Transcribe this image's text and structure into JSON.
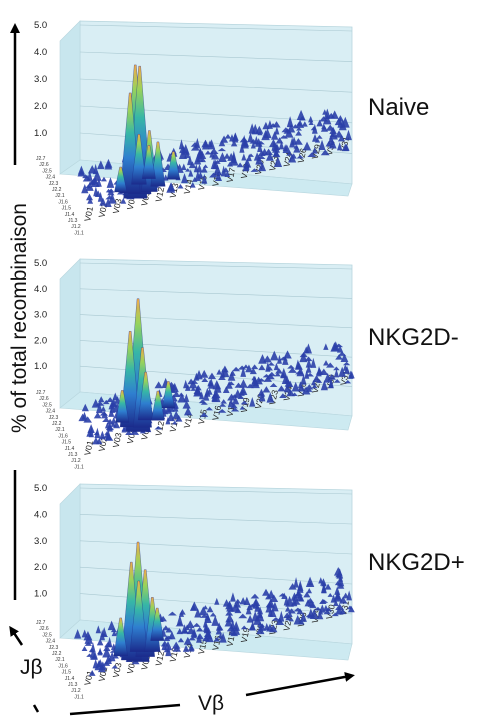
{
  "figure": {
    "y_axis_title": "% of total recombinaison",
    "x_axis_title": "Vβ",
    "depth_axis_title": "Jβ"
  },
  "chart_data": [
    {
      "type": "3d-surface",
      "title": "Naive",
      "zlim": [
        0,
        5
      ],
      "z_ticks": [
        "1.0",
        "2.0",
        "3.0",
        "4.0",
        "5.0"
      ],
      "v_ticks": [
        "V01",
        "V02",
        "V03",
        "V04",
        "V05",
        "V12",
        "V13",
        "V14",
        "V15",
        "V16",
        "V17",
        "V19",
        "V20",
        "V23",
        "V24",
        "V26",
        "V29",
        "V30",
        "V31"
      ],
      "j_ticks": [
        "J2.7",
        "J2.6",
        "J2.5",
        "J2.4",
        "J2.3",
        "J2.2",
        "J2.1",
        "J1.6",
        "J1.5",
        "J1.4",
        "J1.3",
        "J1.2",
        "J1.1"
      ],
      "peaks": [
        {
          "v": 3.2,
          "j": 1,
          "z": 4.8
        },
        {
          "v": 3.6,
          "j": 2,
          "z": 4.6
        },
        {
          "v": 3.0,
          "j": 3,
          "z": 3.6
        },
        {
          "v": 4.3,
          "j": 2,
          "z": 2.2
        },
        {
          "v": 3.8,
          "j": 5,
          "z": 1.8
        },
        {
          "v": 5.0,
          "j": 3,
          "z": 1.6
        },
        {
          "v": 4.6,
          "j": 6,
          "z": 1.2
        },
        {
          "v": 6.2,
          "j": 4,
          "z": 1.0
        },
        {
          "v": 2.4,
          "j": 4,
          "z": 0.9
        }
      ]
    },
    {
      "type": "3d-surface",
      "title": "NKG2D-",
      "zlim": [
        0,
        5
      ],
      "z_ticks": [
        "1.0",
        "2.0",
        "3.0",
        "4.0",
        "5.0"
      ],
      "v_ticks": [
        "V01",
        "V02",
        "V03",
        "V04",
        "V05",
        "V12",
        "V13",
        "V14",
        "V15",
        "V16",
        "V17",
        "V19",
        "V20",
        "V23",
        "V24",
        "V26",
        "V29",
        "V30",
        "V31"
      ],
      "j_ticks": [
        "J2.7",
        "J2.6",
        "J2.5",
        "J2.4",
        "J2.3",
        "J2.2",
        "J2.1",
        "J1.6",
        "J1.5",
        "J1.4",
        "J1.3",
        "J1.2",
        "J1.1"
      ],
      "peaks": [
        {
          "v": 3.4,
          "j": 1,
          "z": 5.0
        },
        {
          "v": 3.0,
          "j": 3,
          "z": 3.6
        },
        {
          "v": 3.8,
          "j": 2,
          "z": 3.0
        },
        {
          "v": 4.2,
          "j": 4,
          "z": 1.8
        },
        {
          "v": 2.6,
          "j": 5,
          "z": 1.2
        },
        {
          "v": 5.0,
          "j": 3,
          "z": 1.1
        },
        {
          "v": 6.0,
          "j": 6,
          "z": 1.0
        }
      ]
    },
    {
      "type": "3d-surface",
      "title": "NKG2D+",
      "zlim": [
        0,
        5
      ],
      "z_ticks": [
        "1.0",
        "2.0",
        "3.0",
        "4.0",
        "5.0"
      ],
      "v_ticks": [
        "V01",
        "V02",
        "V03",
        "V04",
        "V05",
        "V12",
        "V13",
        "V14",
        "V15",
        "V16",
        "V17",
        "V19",
        "V20",
        "V23",
        "V24",
        "V26",
        "V29",
        "V30",
        "V31"
      ],
      "j_ticks": [
        "J2.7",
        "J2.6",
        "J2.5",
        "J2.4",
        "J2.3",
        "J2.2",
        "J2.1",
        "J1.6",
        "J1.5",
        "J1.4",
        "J1.3",
        "J1.2",
        "J1.1"
      ],
      "peaks": [
        {
          "v": 3.4,
          "j": 1,
          "z": 4.4
        },
        {
          "v": 3.0,
          "j": 2,
          "z": 3.6
        },
        {
          "v": 4.0,
          "j": 2,
          "z": 3.2
        },
        {
          "v": 3.7,
          "j": 4,
          "z": 2.6
        },
        {
          "v": 4.6,
          "j": 3,
          "z": 2.0
        },
        {
          "v": 2.4,
          "j": 4,
          "z": 1.4
        },
        {
          "v": 5.2,
          "j": 6,
          "z": 1.2
        }
      ]
    }
  ]
}
